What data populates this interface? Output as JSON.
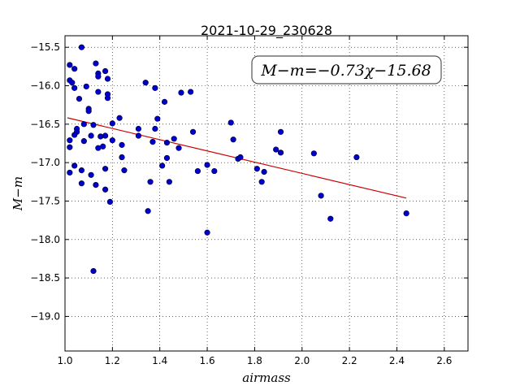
{
  "chart_data": {
    "type": "scatter",
    "title": "2021-10-29_230628",
    "xlabel": "airmass",
    "ylabel": "M−m",
    "xlim": [
      1.0,
      2.7
    ],
    "ylim": [
      -19.45,
      -15.35
    ],
    "xticks": [
      1.0,
      1.2,
      1.4,
      1.6,
      1.8,
      2.0,
      2.2,
      2.4,
      2.6
    ],
    "xtick_labels": [
      "1.0",
      "1.2",
      "1.4",
      "1.6",
      "1.8",
      "2.0",
      "2.2",
      "2.4",
      "2.6"
    ],
    "yticks": [
      -15.5,
      -16.0,
      -16.5,
      -17.0,
      -17.5,
      -18.0,
      -18.5,
      -19.0
    ],
    "ytick_labels": [
      "−15.5",
      "−16.0",
      "−16.5",
      "−17.0",
      "−17.5",
      "−18.0",
      "−18.5",
      "−19.0"
    ],
    "grid": true,
    "annotation": "M−m=−0.73χ−15.68",
    "annotation_position": "top-right",
    "point_color": "#0000cc",
    "fit_color": "#cc0000",
    "fit": {
      "slope": -0.73,
      "intercept": -15.68,
      "x_range": [
        1.01,
        2.44
      ]
    },
    "points": [
      [
        1.07,
        -15.5
      ],
      [
        1.02,
        -15.73
      ],
      [
        1.04,
        -15.78
      ],
      [
        1.13,
        -15.71
      ],
      [
        1.17,
        -15.81
      ],
      [
        1.14,
        -15.84
      ],
      [
        1.14,
        -15.88
      ],
      [
        1.18,
        -15.91
      ],
      [
        1.02,
        -15.93
      ],
      [
        1.03,
        -15.96
      ],
      [
        1.04,
        -16.03
      ],
      [
        1.09,
        -16.01
      ],
      [
        1.14,
        -16.08
      ],
      [
        1.18,
        -16.11
      ],
      [
        1.18,
        -16.16
      ],
      [
        1.06,
        -16.17
      ],
      [
        1.1,
        -16.3
      ],
      [
        1.1,
        -16.33
      ],
      [
        1.34,
        -15.96
      ],
      [
        1.38,
        -16.03
      ],
      [
        1.42,
        -16.21
      ],
      [
        1.49,
        -16.09
      ],
      [
        1.53,
        -16.08
      ],
      [
        1.23,
        -16.42
      ],
      [
        1.39,
        -16.43
      ],
      [
        1.05,
        -16.56
      ],
      [
        1.08,
        -16.5
      ],
      [
        1.12,
        -16.51
      ],
      [
        1.2,
        -16.49
      ],
      [
        1.05,
        -16.6
      ],
      [
        1.04,
        -16.64
      ],
      [
        1.11,
        -16.65
      ],
      [
        1.15,
        -16.66
      ],
      [
        1.17,
        -16.65
      ],
      [
        1.2,
        -16.71
      ],
      [
        1.31,
        -16.56
      ],
      [
        1.31,
        -16.65
      ],
      [
        1.38,
        -16.56
      ],
      [
        1.02,
        -16.71
      ],
      [
        1.08,
        -16.72
      ],
      [
        1.24,
        -16.77
      ],
      [
        1.37,
        -16.73
      ],
      [
        1.43,
        -16.74
      ],
      [
        1.46,
        -16.69
      ],
      [
        1.48,
        -16.81
      ],
      [
        1.54,
        -16.6
      ],
      [
        1.7,
        -16.48
      ],
      [
        1.71,
        -16.7
      ],
      [
        1.02,
        -16.8
      ],
      [
        1.14,
        -16.81
      ],
      [
        1.16,
        -16.79
      ],
      [
        1.24,
        -16.93
      ],
      [
        1.43,
        -16.94
      ],
      [
        1.73,
        -16.95
      ],
      [
        1.74,
        -16.93
      ],
      [
        1.89,
        -16.83
      ],
      [
        1.91,
        -16.87
      ],
      [
        1.91,
        -16.6
      ],
      [
        2.05,
        -16.88
      ],
      [
        2.23,
        -16.93
      ],
      [
        1.04,
        -17.04
      ],
      [
        1.02,
        -17.13
      ],
      [
        1.07,
        -17.1
      ],
      [
        1.11,
        -17.16
      ],
      [
        1.17,
        -17.08
      ],
      [
        1.25,
        -17.1
      ],
      [
        1.41,
        -17.04
      ],
      [
        1.56,
        -17.11
      ],
      [
        1.6,
        -17.03
      ],
      [
        1.63,
        -17.11
      ],
      [
        1.81,
        -17.08
      ],
      [
        1.84,
        -17.12
      ],
      [
        1.07,
        -17.27
      ],
      [
        1.13,
        -17.29
      ],
      [
        1.17,
        -17.35
      ],
      [
        1.19,
        -17.51
      ],
      [
        1.36,
        -17.25
      ],
      [
        1.44,
        -17.25
      ],
      [
        1.83,
        -17.25
      ],
      [
        2.08,
        -17.43
      ],
      [
        2.12,
        -17.73
      ],
      [
        2.44,
        -17.66
      ],
      [
        1.35,
        -17.63
      ],
      [
        1.6,
        -17.91
      ],
      [
        1.12,
        -18.41
      ]
    ]
  }
}
